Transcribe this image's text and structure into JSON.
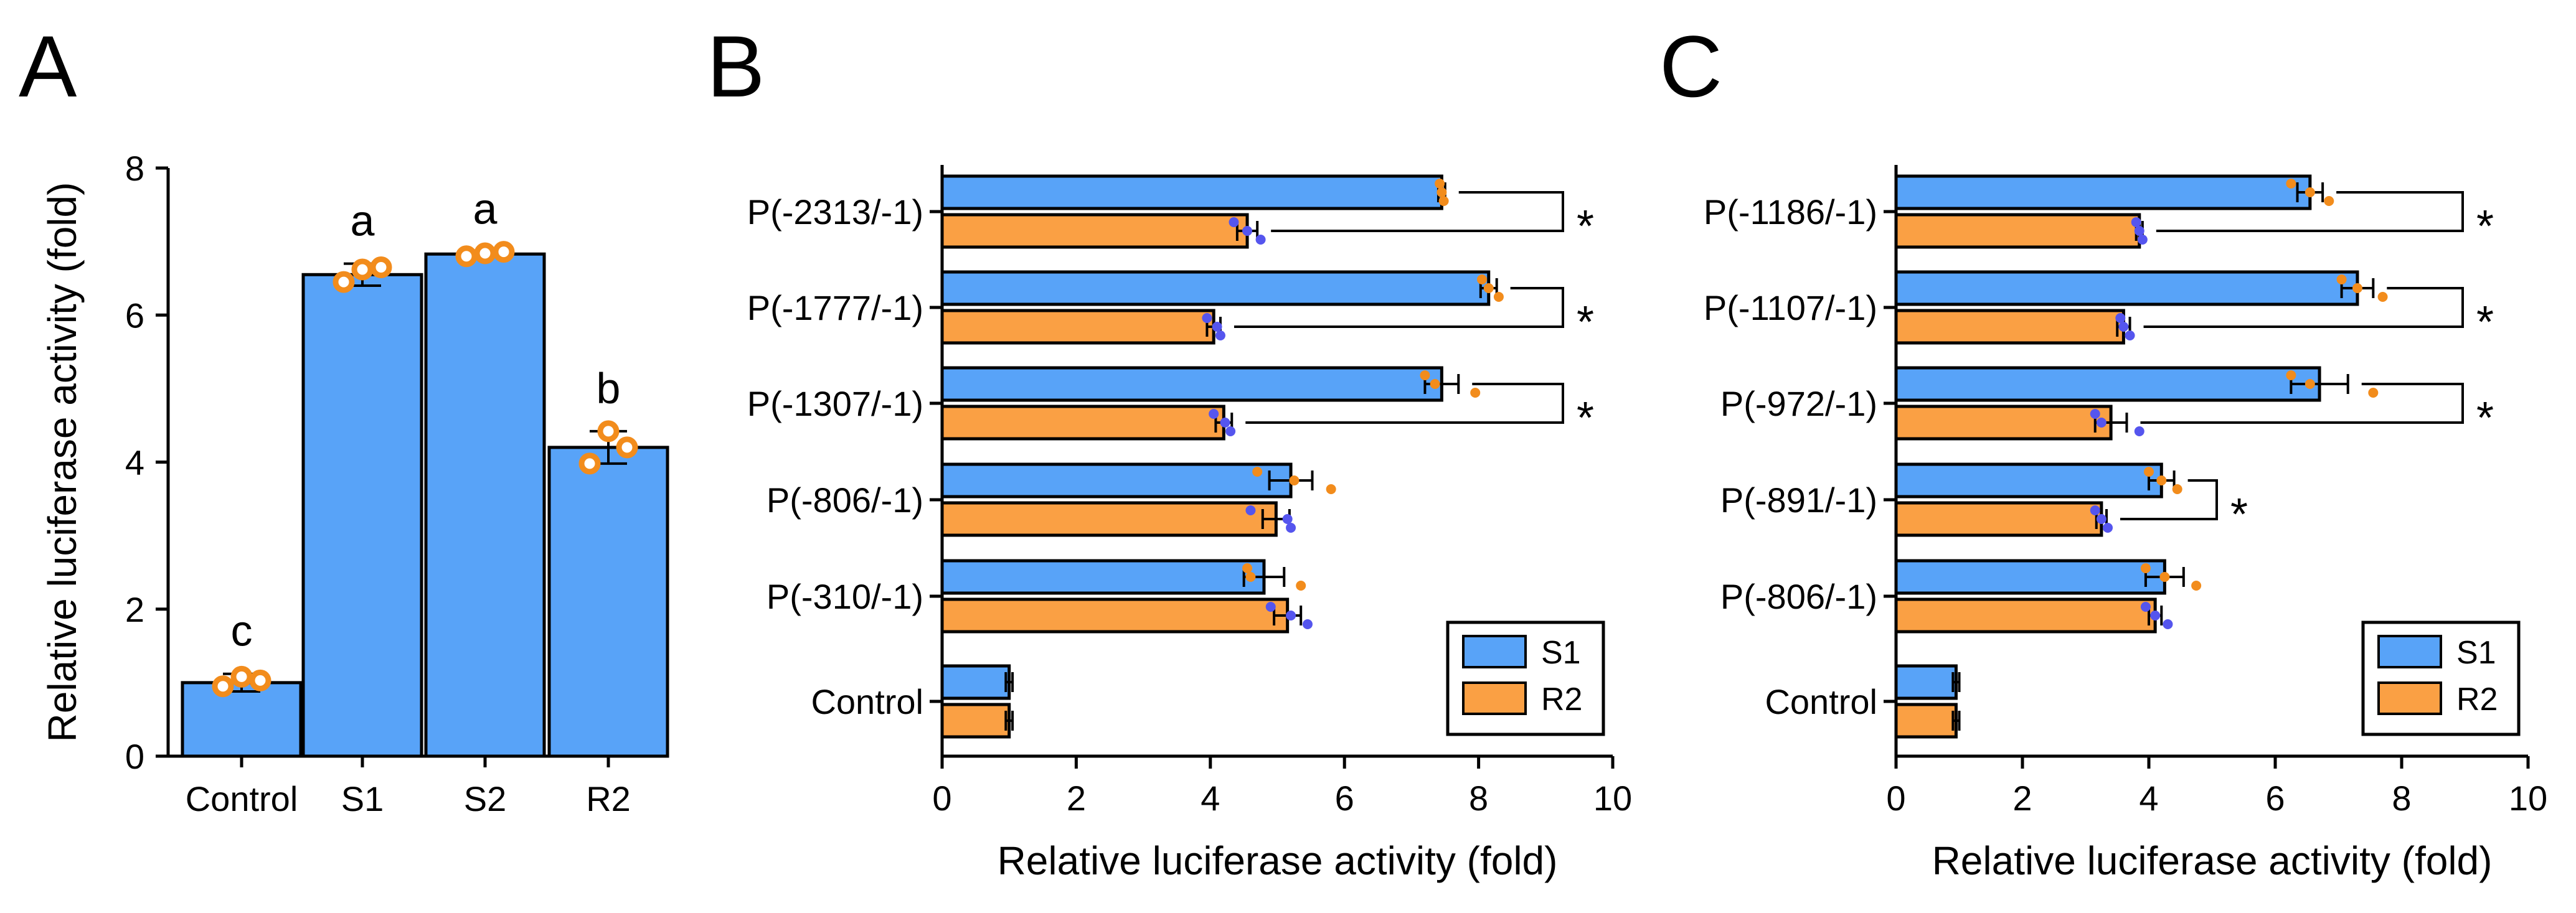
{
  "colors": {
    "s1": "#58a3f8",
    "r2": "#faa044",
    "point_s1": "#5555ee",
    "point_r2": "#f28c1c"
  },
  "chart_data": [
    {
      "panel": "A",
      "type": "bar",
      "orientation": "vertical",
      "ylabel": "Relative luciferase activity (fold)",
      "xlabel": "",
      "ylim": [
        0,
        8
      ],
      "yticks": [
        "0",
        "2",
        "4",
        "6",
        "8"
      ],
      "categories": [
        "Control",
        "S1",
        "S2",
        "R2"
      ],
      "values": [
        1.0,
        6.55,
        6.83,
        4.2
      ],
      "errors": [
        0.12,
        0.15,
        0.03,
        0.22
      ],
      "points": [
        [
          0.95,
          1.08,
          1.03
        ],
        [
          6.45,
          6.62,
          6.65
        ],
        [
          6.8,
          6.84,
          6.86
        ],
        [
          3.98,
          4.42,
          4.2
        ]
      ],
      "letters": [
        "c",
        "a",
        "a",
        "b"
      ]
    },
    {
      "panel": "B",
      "type": "bar",
      "orientation": "horizontal",
      "xlabel": "Relative luciferase activity (fold)",
      "xlim": [
        0,
        10
      ],
      "xticks": [
        "0",
        "2",
        "4",
        "6",
        "8",
        "10"
      ],
      "categories": [
        "P(-2313/-1)",
        "P(-1777/-1)",
        "P(-1307/-1)",
        "P(-806/-1)",
        "P(-310/-1)",
        "Control"
      ],
      "series": [
        {
          "name": "S1",
          "values": [
            7.45,
            8.15,
            7.45,
            5.2,
            4.8,
            1.0
          ],
          "errors": [
            0.05,
            0.12,
            0.25,
            0.32,
            0.3,
            0.05
          ],
          "points": [
            [
              7.42,
              7.45,
              7.48
            ],
            [
              8.05,
              8.15,
              8.3
            ],
            [
              7.2,
              7.35,
              7.95
            ],
            [
              4.7,
              5.25,
              5.8
            ],
            [
              4.55,
              4.6,
              5.35
            ]
          ]
        },
        {
          "name": "R2",
          "values": [
            4.55,
            4.05,
            4.2,
            4.98,
            5.15,
            1.0
          ],
          "errors": [
            0.15,
            0.1,
            0.12,
            0.2,
            0.2,
            0.05
          ],
          "points": [
            [
              4.35,
              4.55,
              4.75
            ],
            [
              3.95,
              4.1,
              4.15
            ],
            [
              4.05,
              4.22,
              4.3
            ],
            [
              4.6,
              5.15,
              5.2
            ],
            [
              4.9,
              5.2,
              5.45
            ]
          ]
        }
      ],
      "significance": [
        "*",
        "*",
        "*",
        "",
        "",
        ""
      ],
      "legend": [
        "S1",
        "R2"
      ],
      "legend_position": "bottom-right"
    },
    {
      "panel": "C",
      "type": "bar",
      "orientation": "horizontal",
      "xlabel": "Relative luciferase activity (fold)",
      "xlim": [
        0,
        10
      ],
      "xticks": [
        "0",
        "2",
        "4",
        "6",
        "8",
        "10"
      ],
      "categories": [
        "P(-1186/-1)",
        "P(-1107/-1)",
        "P(-972/-1)",
        "P(-891/-1)",
        "P(-806/-1)",
        "Control"
      ],
      "series": [
        {
          "name": "S1",
          "values": [
            6.55,
            7.3,
            6.7,
            4.2,
            4.25,
            0.95
          ],
          "errors": [
            0.2,
            0.25,
            0.45,
            0.2,
            0.3,
            0.05
          ],
          "points": [
            [
              6.25,
              6.55,
              6.85
            ],
            [
              7.05,
              7.3,
              7.7
            ],
            [
              6.25,
              6.55,
              7.55
            ],
            [
              4.0,
              4.2,
              4.45
            ],
            [
              3.95,
              4.25,
              4.75
            ]
          ]
        },
        {
          "name": "R2",
          "values": [
            3.85,
            3.6,
            3.4,
            3.25,
            4.1,
            0.95
          ],
          "errors": [
            0.05,
            0.1,
            0.25,
            0.08,
            0.1,
            0.05
          ],
          "points": [
            [
              3.8,
              3.85,
              3.9
            ],
            [
              3.55,
              3.6,
              3.7
            ],
            [
              3.15,
              3.25,
              3.85
            ],
            [
              3.15,
              3.25,
              3.35
            ],
            [
              3.95,
              4.1,
              4.3
            ]
          ]
        }
      ],
      "significance": [
        "*",
        "*",
        "*",
        "*",
        "",
        ""
      ],
      "legend": [
        "S1",
        "R2"
      ],
      "legend_position": "bottom-right"
    }
  ]
}
